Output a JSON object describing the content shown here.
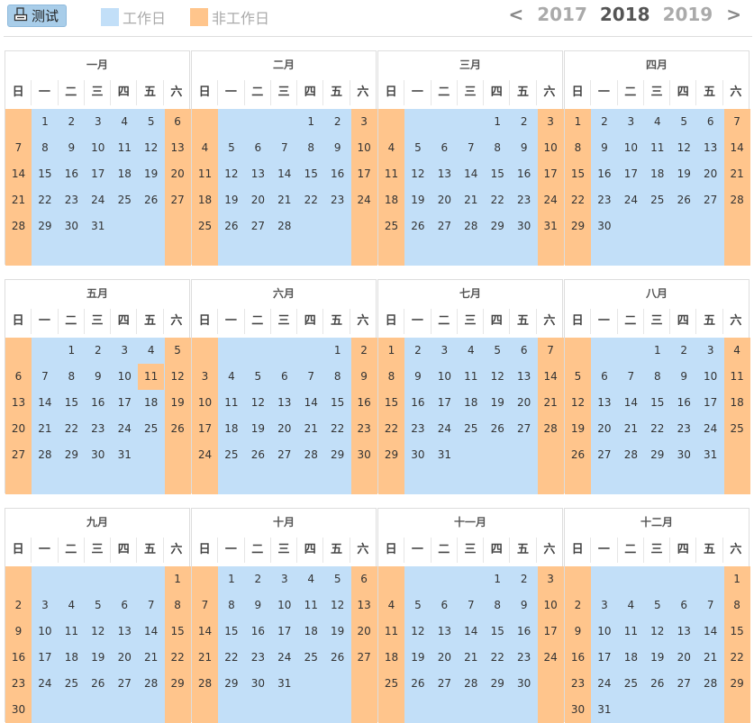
{
  "toolbar": {
    "test_button": "测试",
    "legend_work": "工作日",
    "legend_off": "非工作日",
    "prev_arrow": "<",
    "next_arrow": ">",
    "years": [
      "2017",
      "2018",
      "2019"
    ],
    "current_year": "2018"
  },
  "colors": {
    "work": "#c2dff8",
    "off": "#ffc58c"
  },
  "weekday_labels": [
    "日",
    "一",
    "二",
    "三",
    "四",
    "五",
    "六"
  ],
  "months": [
    {
      "name": "一月",
      "first_weekday": 1,
      "days": 31,
      "work_overrides": [],
      "off_overrides": []
    },
    {
      "name": "二月",
      "first_weekday": 4,
      "days": 28,
      "work_overrides": [],
      "off_overrides": []
    },
    {
      "name": "三月",
      "first_weekday": 4,
      "days": 31,
      "work_overrides": [],
      "off_overrides": []
    },
    {
      "name": "四月",
      "first_weekday": 0,
      "days": 30,
      "work_overrides": [],
      "off_overrides": []
    },
    {
      "name": "五月",
      "first_weekday": 2,
      "days": 31,
      "work_overrides": [],
      "off_overrides": [
        11
      ]
    },
    {
      "name": "六月",
      "first_weekday": 5,
      "days": 30,
      "work_overrides": [],
      "off_overrides": []
    },
    {
      "name": "七月",
      "first_weekday": 0,
      "days": 31,
      "work_overrides": [],
      "off_overrides": []
    },
    {
      "name": "八月",
      "first_weekday": 3,
      "days": 31,
      "work_overrides": [],
      "off_overrides": []
    },
    {
      "name": "九月",
      "first_weekday": 6,
      "days": 30,
      "work_overrides": [],
      "off_overrides": []
    },
    {
      "name": "十月",
      "first_weekday": 1,
      "days": 31,
      "work_overrides": [],
      "off_overrides": []
    },
    {
      "name": "十一月",
      "first_weekday": 4,
      "days": 30,
      "work_overrides": [],
      "off_overrides": []
    },
    {
      "name": "十二月",
      "first_weekday": 6,
      "days": 31,
      "work_overrides": [],
      "off_overrides": []
    }
  ]
}
